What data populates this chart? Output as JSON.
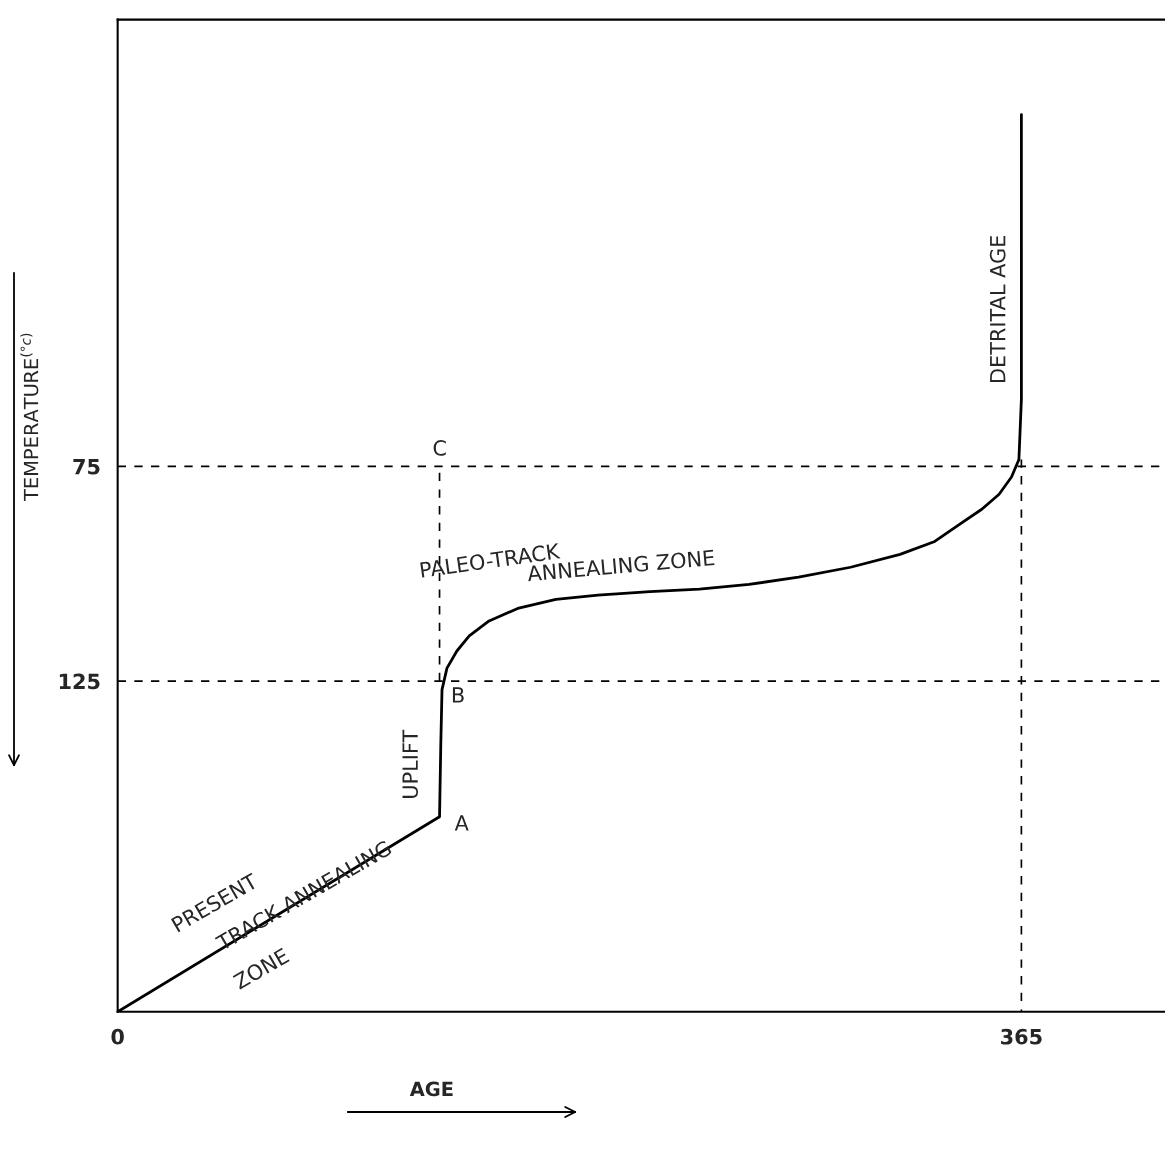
{
  "chart_data": {
    "type": "line",
    "xlabel": "AGE",
    "ylabel": "TEMPERATURE$^{(°c)}$",
    "xlim": [
      0,
      423
    ],
    "ylim": [
      202,
      -29
    ],
    "xticks": [
      0,
      365
    ],
    "yticks": [
      75,
      125
    ],
    "grid": false,
    "legend": false,
    "series": [
      {
        "color": "#000000",
        "line_style": "solid",
        "x": [
          0,
          130,
          130.5,
          131,
          133,
          137,
          142,
          150,
          162,
          177,
          194,
          215,
          235,
          255,
          275,
          296,
          316,
          330,
          340,
          349,
          356,
          361,
          364,
          365,
          365
        ],
        "values": [
          202,
          156.6,
          140,
          127,
          122,
          118,
          114.5,
          111,
          108,
          106,
          105,
          104.2,
          103.6,
          102.5,
          100.8,
          98.5,
          95.5,
          92.5,
          88.5,
          85,
          81.5,
          77.5,
          73.4,
          59.4,
          -6.9
        ]
      },
      {
        "color": "#000000",
        "line_style": "dashed",
        "x": [
          130,
          130
        ],
        "values": [
          125,
          75
        ]
      },
      {
        "color": "#000000",
        "line_style": "dashed",
        "x": [
          365,
          365
        ],
        "values": [
          73.4,
          202
        ]
      }
    ],
    "ref_lines": [
      {
        "axis": "y",
        "value": 75,
        "line_style": "dashed",
        "color": "#000000"
      },
      {
        "axis": "y",
        "value": 125,
        "line_style": "dashed",
        "color": "#000000"
      }
    ],
    "annotations": [
      "C",
      "B",
      "A",
      "UPLIFT",
      "PRESENT",
      "TRACK ANNEALING",
      "ZONE",
      "PALEO-TRACK",
      "ANNEALING ZONE",
      "DETRITAL AGE"
    ]
  }
}
